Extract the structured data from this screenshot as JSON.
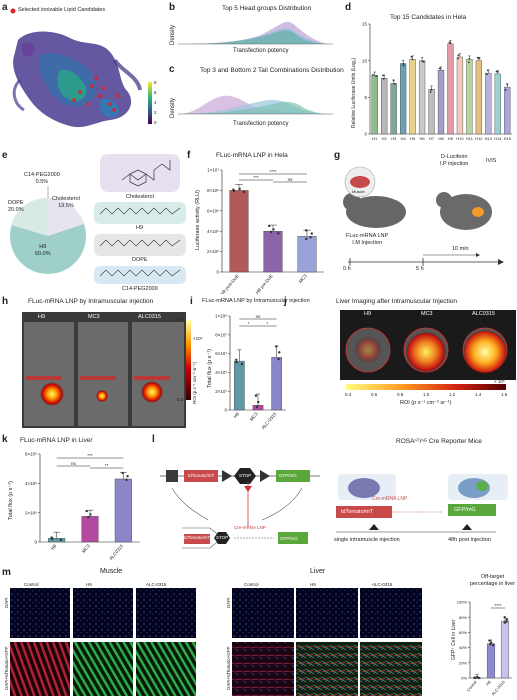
{
  "panel_labels": [
    "a",
    "b",
    "c",
    "d",
    "e",
    "f",
    "g",
    "h",
    "i",
    "j",
    "k",
    "l",
    "m"
  ],
  "a": {
    "legend": "Selected ionizable Lipid Candidates",
    "colorbar_ticks": [
      "8",
      "6",
      "4",
      "2",
      "0"
    ]
  },
  "b": {
    "title": "Top 5 Head groups Distribution",
    "ylabel": "Density",
    "xlabel": "Transfection potency"
  },
  "c": {
    "title": "Top 3 and Bottom 2 Tail Combinations Distribution",
    "ylabel": "Density",
    "xlabel": "Transfection potency"
  },
  "d": {
    "title": "Top 15 Candidates in Hela",
    "ylabel": "Relative Luciferase Units (Log₂)"
  },
  "e": {
    "pie_labels": [
      "C14-PEG2000\n0.5%",
      "DOPE\n20.0%",
      "Cholesterol\n19.5%",
      "H9\n60.0%"
    ],
    "structures": [
      "Cholesterol",
      "H9",
      "DOPE",
      "C14-PEG2000"
    ]
  },
  "f": {
    "title": "FLuc-mRNA LNP in Hela",
    "ylabel": "Luciferase activity (RLU)",
    "sig": [
      "***",
      "****",
      "ns"
    ]
  },
  "g": {
    "mouse_label": "FLuc-mRNA LNP\nI.M Injection",
    "luciferin": "D-Luciferin\nI.P injection",
    "ivis": "IVIS",
    "times": [
      "0 h",
      "5 h"
    ],
    "interval": "10 min",
    "muscle": "Muscle"
  },
  "h": {
    "title": "FLuc-mRNA LNP by Intramuscular injection",
    "cols": [
      "H9",
      "MC3",
      "ALC0315"
    ],
    "cb_label": "ROI (p s⁻¹ cm⁻² sr⁻¹)",
    "cb_ticks": [
      "9.0",
      "0.2"
    ],
    "cb_exp": "×10⁶"
  },
  "i": {
    "title": "FLuc-mRNA LNP by Intramuscular injection",
    "ylabel": "Total flux (p s⁻¹)",
    "sig": [
      "ns",
      "*",
      "*"
    ]
  },
  "j": {
    "title": "Liver Imaging after Intramuscular Injection",
    "cols": [
      "H9",
      "MC3",
      "ALC0315"
    ],
    "cb_ticks": [
      "0.4",
      "0.6",
      "0.8",
      "1.0",
      "1.2",
      "1.4",
      "1.6"
    ],
    "cb_exp": "× 10⁶",
    "cb_label": "ROI (p s⁻¹ cm⁻² sr⁻¹)"
  },
  "k": {
    "title": "FLuc-mRNA LNP in Liver",
    "ylabel": "Total flux (p s⁻¹)",
    "sig": [
      "***",
      "ns",
      "**"
    ]
  },
  "l": {
    "title": "ROSAⁿᵀ/ⁿᴳ Cre Reporter Mice",
    "red": "tdTomato/mT",
    "green": "GFP/mG",
    "cre": "Cre-mRNA LNP",
    "stop": "STOP",
    "step1": "single intramuscle  injection",
    "step2": "48h post injection"
  },
  "m": {
    "muscle_title": "Muscle",
    "liver_title": "Liver",
    "cols": [
      "Control",
      "H9",
      "ALC-0315"
    ],
    "row1": "DAPI",
    "row2": "DAPI+tdTomato+GFP",
    "bar_title": "Off-target\npercentage in liver",
    "ylabel": "GFP⁺ Cell in Liver",
    "sig": "****"
  },
  "chart_data": [
    {
      "type": "bar",
      "title": "Top 15 Candidates in Hela",
      "ylabel": "Relative Luciferase Units (Log₂)",
      "categories": [
        "H1",
        "H2",
        "H3",
        "H4",
        "H5",
        "H6",
        "H7",
        "H8",
        "H9",
        "H10",
        "H11",
        "H12",
        "H13",
        "H14",
        "H15"
      ],
      "values": [
        8.0,
        7.6,
        6.9,
        9.6,
        10.2,
        10.0,
        6.1,
        8.7,
        12.3,
        10.5,
        10.2,
        10.0,
        8.3,
        8.2,
        6.4
      ],
      "ylim": [
        0,
        15
      ],
      "yticks": [
        0,
        5,
        10,
        15
      ],
      "colors": [
        "#8fbc8f",
        "#b7b7b7",
        "#7fa7a0",
        "#6e9eb0",
        "#e6d08a",
        "#c9c9c9",
        "#bdbdbd",
        "#a99bc9",
        "#e39aa7",
        "#f5c9b8",
        "#b9d69a",
        "#e7c07f",
        "#b9b3d9",
        "#9fd0d0",
        "#a8a7e0"
      ]
    },
    {
      "type": "bar",
      "title": "FLuc-mRNA LNP in Hela",
      "ylabel": "Luciferase activity (RLU)",
      "categories": [
        "H9 post-DoE",
        "H9 pre-DoE",
        "MC3"
      ],
      "values": [
        8000000,
        4000000,
        3500000
      ],
      "ylim": [
        0,
        10000000
      ],
      "yticks": [
        "0",
        "2×10⁶",
        "4×10⁶",
        "6×10⁶",
        "8×10⁶",
        "1×10⁷"
      ],
      "colors": [
        "#b25a5a",
        "#8c64a8",
        "#9aa3d8"
      ]
    },
    {
      "type": "bar",
      "title": "FLuc-mRNA LNP by Intramuscular injection",
      "ylabel": "Total flux (p s⁻¹)",
      "categories": [
        "H9",
        "MC3",
        "ALC-0315"
      ],
      "values": [
        52000000,
        5000000,
        56000000
      ],
      "ylim": [
        0,
        100000000
      ],
      "yticks": [
        "0",
        "2×10⁷",
        "4×10⁷",
        "6×10⁷",
        "8×10⁷",
        "1×10⁸"
      ],
      "colors": [
        "#5f9aa7",
        "#b14aa0",
        "#8a86c8"
      ]
    },
    {
      "type": "bar",
      "title": "FLuc-mRNA LNP in Liver",
      "ylabel": "Total flux (p s⁻¹)",
      "categories": [
        "H9",
        "MC3",
        "ALC0315"
      ],
      "values": [
        250000,
        1750000,
        4300000
      ],
      "ylim": [
        0,
        6000000
      ],
      "yticks": [
        "0",
        "2×10⁶",
        "4×10⁶",
        "6×10⁶"
      ],
      "colors": [
        "#5f9aa7",
        "#b14aa0",
        "#8a86c8"
      ]
    },
    {
      "type": "bar",
      "title": "Off-target\npercentage in liver",
      "ylabel": "GFP⁺ Cell in Liver",
      "categories": [
        "Control",
        "H9",
        "ALC-0315"
      ],
      "values": [
        0,
        45,
        75
      ],
      "ylim": [
        0,
        100
      ],
      "yticks": [
        "0%",
        "20%",
        "40%",
        "60%",
        "80%",
        "100%"
      ],
      "colors": [
        "#bbbbbb",
        "#8e8ad0",
        "#c9c2ea"
      ]
    }
  ]
}
